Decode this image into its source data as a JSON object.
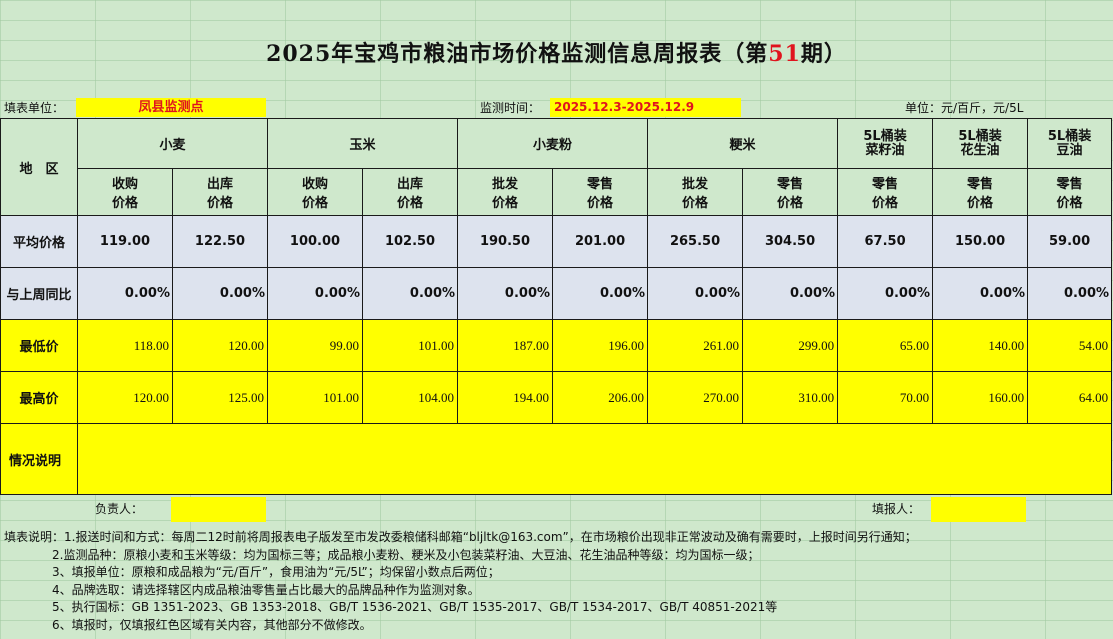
{
  "title": {
    "prefix": "2025年宝鸡市粮油市场价格监测信息周报表（第",
    "issue": "51",
    "suffix": "期）"
  },
  "meta": {
    "org_label": "填表单位：",
    "org_value": "凤县监测点",
    "period_label": "监测时间：",
    "period_value": "2025.12.3-2025.12.9",
    "unit_label": "单位：元/百斤，元/5L"
  },
  "table": {
    "region_label": "地　区",
    "groups": [
      "小麦",
      "玉米",
      "小麦粉",
      "粳米"
    ],
    "oil_groups": [
      {
        "line1": "5L桶装",
        "line2": "菜籽油"
      },
      {
        "line1": "5L桶装",
        "line2": "花生油"
      },
      {
        "line1": "5L桶装",
        "line2": "豆油"
      }
    ],
    "subheaders": [
      {
        "l1": "收购",
        "l2": "价格"
      },
      {
        "l1": "出库",
        "l2": "价格"
      },
      {
        "l1": "收购",
        "l2": "价格"
      },
      {
        "l1": "出库",
        "l2": "价格"
      },
      {
        "l1": "批发",
        "l2": "价格"
      },
      {
        "l1": "零售",
        "l2": "价格"
      },
      {
        "l1": "批发",
        "l2": "价格"
      },
      {
        "l1": "零售",
        "l2": "价格"
      },
      {
        "l1": "零售",
        "l2": "价格"
      },
      {
        "l1": "零售",
        "l2": "价格"
      },
      {
        "l1": "零售",
        "l2": "价格"
      }
    ],
    "rows": {
      "avg": {
        "label": "平均价格",
        "values": [
          "119.00",
          "122.50",
          "100.00",
          "102.50",
          "190.50",
          "201.00",
          "265.50",
          "304.50",
          "67.50",
          "150.00",
          "59.00"
        ]
      },
      "wow": {
        "label": "与上周同比",
        "values": [
          "0.00%",
          "0.00%",
          "0.00%",
          "0.00%",
          "0.00%",
          "0.00%",
          "0.00%",
          "0.00%",
          "0.00%",
          "0.00%",
          "0.00%"
        ]
      },
      "min": {
        "label": "最低价",
        "values": [
          "118.00",
          "120.00",
          "99.00",
          "101.00",
          "187.00",
          "196.00",
          "261.00",
          "299.00",
          "65.00",
          "140.00",
          "54.00"
        ]
      },
      "max": {
        "label": "最高价",
        "values": [
          "120.00",
          "125.00",
          "101.00",
          "104.00",
          "194.00",
          "206.00",
          "270.00",
          "310.00",
          "70.00",
          "160.00",
          "64.00"
        ]
      }
    },
    "remark_label": "情况说明",
    "remark_value": ""
  },
  "signatures": {
    "responsible_label": "负责人：",
    "reporter_label": "填报人："
  },
  "notes": [
    "填表说明：1.报送时间和方式：每周二12时前将周报表电子版发至市发改委粮储科邮箱“bljltk@163.com”，在市场粮价出现非正常波动及确有需要时，上报时间另行通知；",
    "　　　　2.监测品种：原粮小麦和玉米等级：均为国标三等；成品粮小麦粉、粳米及小包装菜籽油、大豆油、花生油品种等级：均为国标一级；",
    "　　　　3、填报单位：原粮和成品粮为“元/百斤”，食用油为“元/5L”；均保留小数点后两位；",
    "　　　　4、品牌选取：请选择辖区内成品粮油零售量占比最大的品牌品种作为监测对象。",
    "　　　　5、执行国标：GB 1351-2023、GB 1353-2018、GB/T 1536-2021、GB/T 1535-2017、GB/T 1534-2017、GB/T 40851-2021等",
    "　　　　6、填报时，仅填报红色区域有关内容，其他部分不做修改。"
  ]
}
